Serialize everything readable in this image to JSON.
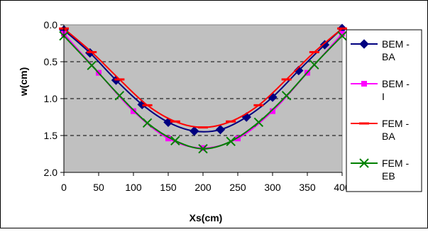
{
  "chart_data": {
    "type": "line",
    "xlabel": "Xs(cm)",
    "ylabel": "w(cm)",
    "xlim": [
      0,
      400
    ],
    "ylim": [
      0,
      2
    ],
    "y_inverted": true,
    "grid": "horizontal dashed",
    "plot_background": "#c0c0c0",
    "legend_position": "right",
    "x_ticks": [
      "0",
      "50",
      "100",
      "150",
      "200",
      "250",
      "300",
      "350",
      "400"
    ],
    "y_ticks": [
      "0.0",
      "0.5",
      "1.0",
      "1.5",
      "2.0"
    ],
    "series": [
      {
        "name": "BEM - BA",
        "legend_lines": [
          "BEM -",
          "BA"
        ],
        "color": "#000080",
        "marker": "diamond",
        "x": [
          0,
          37.5,
          75,
          112.5,
          150,
          187.5,
          225,
          262.5,
          300,
          337.5,
          375,
          400
        ],
        "y": [
          0.07,
          0.38,
          0.75,
          1.08,
          1.32,
          1.44,
          1.42,
          1.25,
          0.98,
          0.62,
          0.27,
          0.05
        ]
      },
      {
        "name": "BEM - I",
        "legend_lines": [
          "BEM -",
          "I"
        ],
        "color": "#ff00ff",
        "marker": "square",
        "x": [
          0,
          50,
          100,
          150,
          200,
          250,
          300,
          350,
          400
        ],
        "y": [
          0.12,
          0.65,
          1.17,
          1.54,
          1.67,
          1.54,
          1.17,
          0.65,
          0.12
        ]
      },
      {
        "name": "FEM - BA",
        "legend_lines": [
          "FEM -",
          "BA"
        ],
        "color": "#ff0000",
        "marker": "dash",
        "x": [
          0,
          40,
          80,
          120,
          160,
          200,
          240,
          280,
          320,
          360,
          400
        ],
        "y": [
          0.05,
          0.37,
          0.74,
          1.09,
          1.31,
          1.39,
          1.31,
          1.09,
          0.74,
          0.37,
          0.05
        ]
      },
      {
        "name": "FEM - EB",
        "legend_lines": [
          "FEM -",
          "EB"
        ],
        "color": "#008000",
        "marker": "x",
        "x": [
          0,
          40,
          80,
          120,
          160,
          200,
          240,
          280,
          320,
          360,
          400
        ],
        "y": [
          0.15,
          0.55,
          0.96,
          1.33,
          1.57,
          1.68,
          1.58,
          1.32,
          0.96,
          0.54,
          0.15
        ]
      }
    ]
  }
}
